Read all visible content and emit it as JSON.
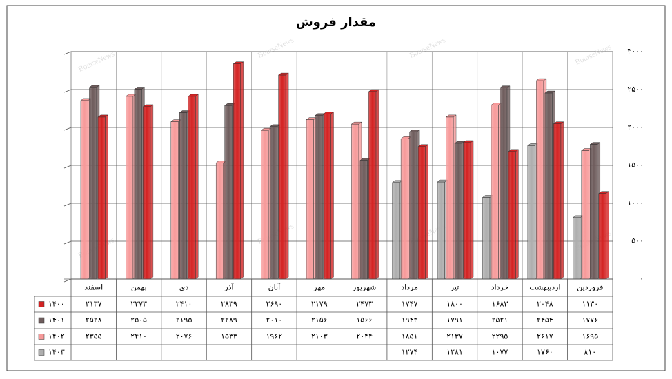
{
  "chart_data": {
    "type": "bar",
    "title": "مقدار فروش",
    "watermark": "BourseNews",
    "categories": [
      "اسفند",
      "بهمن",
      "دی",
      "آذر",
      "آبان",
      "مهر",
      "شهریور",
      "مرداد",
      "تیر",
      "خرداد",
      "اردیبهشت",
      "فروردین"
    ],
    "series": [
      {
        "name": "۱۴۰۰",
        "color": "#d42222",
        "values": [
          2137,
          2273,
          2410,
          2839,
          2690,
          2179,
          2473,
          1747,
          1800,
          1683,
          2048,
          1130
        ],
        "value_labels": [
          "۲۱۳۷",
          "۲۲۷۳",
          "۲۴۱۰",
          "۲۸۳۹",
          "۲۶۹۰",
          "۲۱۷۹",
          "۲۴۷۳",
          "۱۷۴۷",
          "۱۸۰۰",
          "۱۶۸۳",
          "۲۰۴۸",
          "۱۱۳۰"
        ]
      },
      {
        "name": "۱۴۰۱",
        "color": "#6e5c5c",
        "values": [
          2528,
          2505,
          2195,
          2289,
          2010,
          2156,
          1566,
          1943,
          1791,
          2521,
          2454,
          1776
        ],
        "value_labels": [
          "۲۵۲۸",
          "۲۵۰۵",
          "۲۱۹۵",
          "۲۲۸۹",
          "۲۰۱۰",
          "۲۱۵۶",
          "۱۵۶۶",
          "۱۹۴۳",
          "۱۷۹۱",
          "۲۵۲۱",
          "۲۴۵۴",
          "۱۷۷۶"
        ]
      },
      {
        "name": "۱۴۰۲",
        "color": "#f79a9a",
        "values": [
          2355,
          2410,
          2076,
          1533,
          1962,
          2103,
          2044,
          1851,
          2137,
          2295,
          2617,
          1695
        ],
        "value_labels": [
          "۲۳۵۵",
          "۲۴۱۰",
          "۲۰۷۶",
          "۱۵۳۳",
          "۱۹۶۲",
          "۲۱۰۳",
          "۲۰۴۴",
          "۱۸۵۱",
          "۲۱۳۷",
          "۲۲۹۵",
          "۲۶۱۷",
          "۱۶۹۵"
        ]
      },
      {
        "name": "۱۴۰۳",
        "color": "#aeaeae",
        "values": [
          null,
          null,
          null,
          null,
          null,
          null,
          null,
          1274,
          1281,
          1077,
          1760,
          810
        ],
        "value_labels": [
          null,
          null,
          null,
          null,
          null,
          null,
          null,
          "۱۲۷۴",
          "۱۲۸۱",
          "۱۰۷۷",
          "۱۷۶۰",
          "۸۱۰"
        ]
      }
    ],
    "bar_order": [
      3,
      2,
      1,
      0
    ],
    "ylim": [
      0,
      3000
    ],
    "yticks": [
      {
        "value": 0,
        "label": "۰"
      },
      {
        "value": 500,
        "label": "۵۰۰"
      },
      {
        "value": 1000,
        "label": "۱۰۰۰"
      },
      {
        "value": 1500,
        "label": "۱۵۰۰"
      },
      {
        "value": 2000,
        "label": "۲۰۰۰"
      },
      {
        "value": 2500,
        "label": "۲۵۰۰"
      },
      {
        "value": 3000,
        "label": "۳۰۰۰"
      }
    ],
    "grid": true
  }
}
